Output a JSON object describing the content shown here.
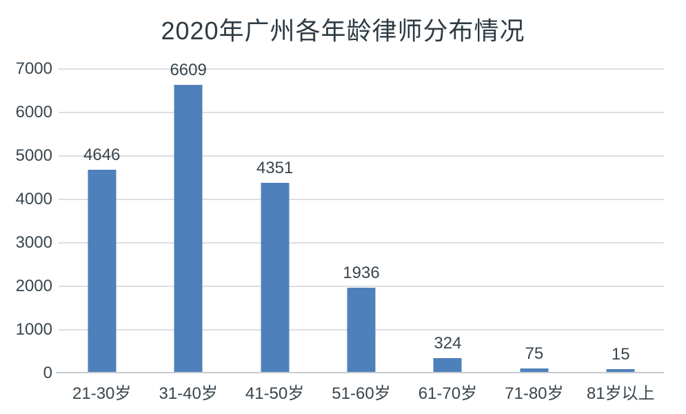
{
  "title": "2020年广州各年龄律师分布情况",
  "colors": {
    "bar": "#4e80bc",
    "gridline": "#dcdee0",
    "axis_line": "#c6cbd0",
    "title_text": "#2e3b44",
    "label_text": "#39454d",
    "background": "#ffffff"
  },
  "chart_data": {
    "type": "bar",
    "title": "2020年广州各年龄律师分布情况",
    "categories": [
      "21-30岁",
      "31-40岁",
      "41-50岁",
      "51-60岁",
      "61-70岁",
      "71-80岁",
      "81岁以上"
    ],
    "values": [
      4646,
      6609,
      4351,
      1936,
      324,
      75,
      15
    ],
    "value_labels": [
      "4646",
      "6609",
      "4351",
      "1936",
      "324",
      "75",
      "15"
    ],
    "xlabel": "",
    "ylabel": "",
    "ylim": [
      0,
      7000
    ],
    "yticks": [
      0,
      1000,
      2000,
      3000,
      4000,
      5000,
      6000,
      7000
    ],
    "ytick_interval": 1000,
    "grid": true,
    "legend": false,
    "legend_position": "none",
    "bar_color": "#4e80bc"
  }
}
